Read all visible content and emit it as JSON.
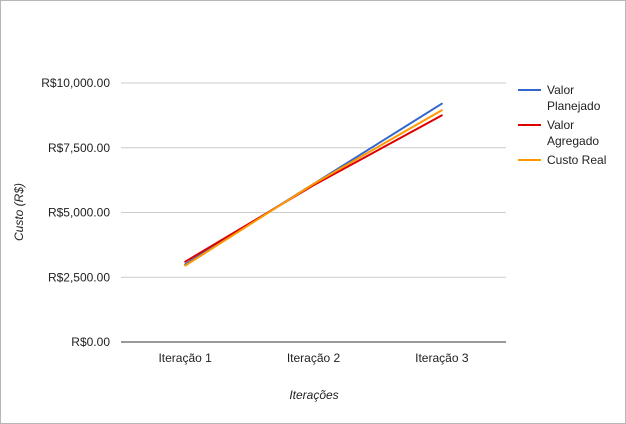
{
  "chart_data": {
    "type": "line",
    "title": "",
    "xlabel": "Iterações",
    "ylabel": "Custo (R$)",
    "categories": [
      "Iteração 1",
      "Iteração 2",
      "Iteração 3"
    ],
    "yticks": [
      "R$0.00",
      "R$2,500.00",
      "R$5,000.00",
      "R$7,500.00",
      "R$10,000.00"
    ],
    "ytick_values": [
      0,
      2500,
      5000,
      7500,
      10000
    ],
    "ylim": [
      0,
      10000
    ],
    "grid": true,
    "legend_position": "right",
    "series": [
      {
        "name": "Valor Planejado",
        "name_lines": [
          "Valor",
          "Planejado"
        ],
        "color": "#3366cc",
        "values": [
          3000,
          6100,
          9200
        ]
      },
      {
        "name": "Valor Agregado",
        "name_lines": [
          "Valor",
          "Agregado"
        ],
        "color": "#dc0000",
        "values": [
          3100,
          6050,
          8750
        ]
      },
      {
        "name": "Custo Real",
        "name_lines": [
          "Custo Real"
        ],
        "color": "#ff9900",
        "values": [
          2950,
          6100,
          8950
        ]
      }
    ]
  }
}
